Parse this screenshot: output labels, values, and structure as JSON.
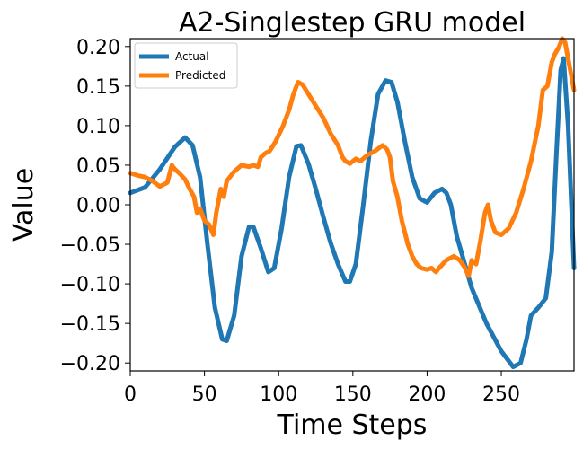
{
  "chart_data": {
    "type": "line",
    "title": "A2-Singlestep GRU model",
    "xlabel": "Time Steps",
    "ylabel": "Value",
    "xlim": [
      0,
      299
    ],
    "ylim": [
      -0.21,
      0.21
    ],
    "x_ticks": [
      0,
      50,
      100,
      150,
      200,
      250
    ],
    "x_tick_labels": [
      "0",
      "50",
      "100",
      "150",
      "200",
      "250"
    ],
    "y_ticks": [
      -0.2,
      -0.15,
      -0.1,
      -0.05,
      0.0,
      0.05,
      0.1,
      0.15,
      0.2
    ],
    "y_tick_labels": [
      "−0.20",
      "−0.15",
      "−0.10",
      "−0.05",
      "0.00",
      "0.05",
      "0.10",
      "0.15",
      "0.20"
    ],
    "grid": false,
    "legend_position": "top-left",
    "series": [
      {
        "name": "Actual",
        "color": "#1f77b4",
        "x": [
          0,
          10,
          20,
          30,
          37,
          42,
          47,
          52,
          57,
          62,
          65,
          70,
          75,
          80,
          83,
          88,
          93,
          97,
          102,
          107,
          112,
          115,
          120,
          125,
          130,
          135,
          140,
          145,
          148,
          152,
          157,
          162,
          167,
          172,
          176,
          180,
          185,
          190,
          195,
          200,
          205,
          210,
          213,
          216,
          220,
          230,
          240,
          250,
          258,
          263,
          267,
          270,
          275,
          280,
          284,
          287,
          290,
          292,
          295,
          299
        ],
        "y": [
          0.015,
          0.022,
          0.045,
          0.073,
          0.085,
          0.075,
          0.035,
          -0.05,
          -0.13,
          -0.17,
          -0.172,
          -0.14,
          -0.065,
          -0.028,
          -0.028,
          -0.055,
          -0.085,
          -0.08,
          -0.03,
          0.035,
          0.074,
          0.075,
          0.052,
          0.02,
          -0.015,
          -0.048,
          -0.075,
          -0.097,
          -0.097,
          -0.075,
          0.0,
          0.08,
          0.14,
          0.157,
          0.155,
          0.13,
          0.08,
          0.035,
          0.008,
          0.003,
          0.015,
          0.02,
          0.015,
          0.0,
          -0.04,
          -0.105,
          -0.15,
          -0.185,
          -0.205,
          -0.2,
          -0.17,
          -0.14,
          -0.13,
          -0.118,
          -0.06,
          0.06,
          0.17,
          0.185,
          0.1,
          -0.08
        ]
      },
      {
        "name": "Predicted",
        "color": "#ff7f0e",
        "x": [
          0,
          5,
          10,
          15,
          20,
          25,
          28,
          30,
          33,
          37,
          40,
          43,
          45,
          47,
          50,
          53,
          56,
          58,
          61,
          63,
          65,
          70,
          75,
          80,
          83,
          86,
          88,
          91,
          94,
          98,
          103,
          107,
          110,
          113,
          116,
          120,
          125,
          130,
          135,
          140,
          143,
          145,
          148,
          152,
          155,
          160,
          165,
          170,
          173,
          175,
          177,
          180,
          183,
          187,
          190,
          193,
          196,
          200,
          203,
          206,
          208,
          213,
          218,
          222,
          225,
          228,
          230,
          233,
          236,
          239,
          241,
          243,
          246,
          250,
          255,
          260,
          265,
          270,
          275,
          278,
          281,
          284,
          286,
          289,
          291,
          293,
          296,
          299
        ],
        "y": [
          0.04,
          0.037,
          0.035,
          0.03,
          0.023,
          0.028,
          0.05,
          0.045,
          0.04,
          0.032,
          0.02,
          0.01,
          -0.01,
          -0.005,
          -0.02,
          -0.025,
          -0.038,
          -0.01,
          0.02,
          0.01,
          0.03,
          0.042,
          0.05,
          0.048,
          0.05,
          0.048,
          0.06,
          0.065,
          0.068,
          0.08,
          0.1,
          0.12,
          0.14,
          0.155,
          0.152,
          0.14,
          0.125,
          0.11,
          0.09,
          0.075,
          0.06,
          0.055,
          0.052,
          0.058,
          0.055,
          0.063,
          0.068,
          0.075,
          0.07,
          0.06,
          0.03,
          0.01,
          -0.02,
          -0.05,
          -0.065,
          -0.075,
          -0.08,
          -0.082,
          -0.08,
          -0.085,
          -0.08,
          -0.07,
          -0.065,
          -0.07,
          -0.078,
          -0.09,
          -0.07,
          -0.075,
          -0.045,
          -0.01,
          0.0,
          -0.02,
          -0.035,
          -0.038,
          -0.03,
          -0.01,
          0.02,
          0.055,
          0.1,
          0.145,
          0.15,
          0.18,
          0.19,
          0.2,
          0.21,
          0.205,
          0.175,
          0.145
        ]
      }
    ]
  }
}
